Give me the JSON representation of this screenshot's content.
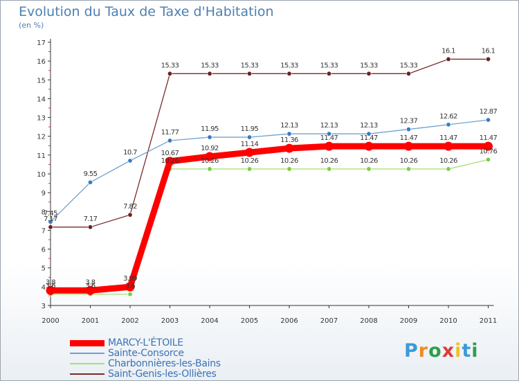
{
  "header": {
    "title": "Evolution du Taux de Taxe d'Habitation",
    "subtitle": "(en %)"
  },
  "logo": {
    "letters": [
      "P",
      "r",
      "o",
      "x",
      "i",
      "t",
      "i"
    ],
    "colors": [
      "#3b9ad9",
      "#f08a24",
      "#2e9e4a",
      "#e03a3a",
      "#f0c020",
      "#3b9ad9",
      "#2e9e4a"
    ]
  },
  "chart_data": {
    "type": "line",
    "x": [
      "2000",
      "2001",
      "2002",
      "2003",
      "2004",
      "2005",
      "2006",
      "2007",
      "2008",
      "2009",
      "2010",
      "2011"
    ],
    "ylim": [
      3,
      17
    ],
    "yticks": [
      3,
      4,
      5,
      6,
      7,
      8,
      9,
      10,
      11,
      12,
      13,
      14,
      15,
      16,
      17
    ],
    "title": "Evolution du Taux de Taxe d'Habitation",
    "ylabel": "(en %)",
    "grid": false,
    "legend": "bottom-left",
    "series": [
      {
        "name": "Saint-Genis-les-Ollières",
        "color": "#7a2a2a",
        "marker": "#6b2222",
        "values": [
          7.17,
          7.17,
          7.82,
          15.33,
          15.33,
          15.33,
          15.33,
          15.33,
          15.33,
          15.33,
          16.1,
          16.1
        ],
        "labels": [
          "7.17",
          "7.17",
          "7.82",
          "15.33",
          "15.33",
          "15.33",
          "15.33",
          "15.33",
          "15.33",
          "15.33",
          "16.1",
          "16.1"
        ]
      },
      {
        "name": "Sainte-Consorce",
        "color": "#6fa3d1",
        "marker": "#3b7bbf",
        "values": [
          7.45,
          9.55,
          10.7,
          11.77,
          11.95,
          11.95,
          12.13,
          12.13,
          12.13,
          12.37,
          12.62,
          12.87
        ],
        "labels": [
          "7.45",
          "9.55",
          "10.7",
          "11.77",
          "11.95",
          "11.95",
          "12.13",
          "12.13",
          "12.13",
          "12.37",
          "12.62",
          "12.87"
        ]
      },
      {
        "name": "Charbonnières-les-Bains",
        "color": "#a6e07a",
        "marker": "#7ccc44",
        "values": [
          3.6,
          3.6,
          3.6,
          10.26,
          10.26,
          10.26,
          10.26,
          10.26,
          10.26,
          10.26,
          10.26,
          10.76
        ],
        "labels": [
          "3.6",
          "3.6",
          "3.6",
          "10.26",
          "10.26",
          "10.26",
          "10.26",
          "10.26",
          "10.26",
          "10.26",
          "10.26",
          "10.76"
        ]
      },
      {
        "name": "MARCY-L'ÉTOILE",
        "color": "#ff0000",
        "marker": "#ff0000",
        "values": [
          3.8,
          3.8,
          3.99,
          10.67,
          10.92,
          11.14,
          11.36,
          11.47,
          11.47,
          11.47,
          11.47,
          11.47
        ],
        "labels": [
          "3.8",
          "3.8",
          "3.99",
          "10.67",
          "10.92",
          "11.14",
          "11.36",
          "11.47",
          "11.47",
          "11.47",
          "11.47",
          "11.47"
        ]
      }
    ],
    "legend_order": [
      "MARCY-L'ÉTOILE",
      "Sainte-Consorce",
      "Charbonnières-les-Bains",
      "Saint-Genis-les-Ollières"
    ]
  }
}
